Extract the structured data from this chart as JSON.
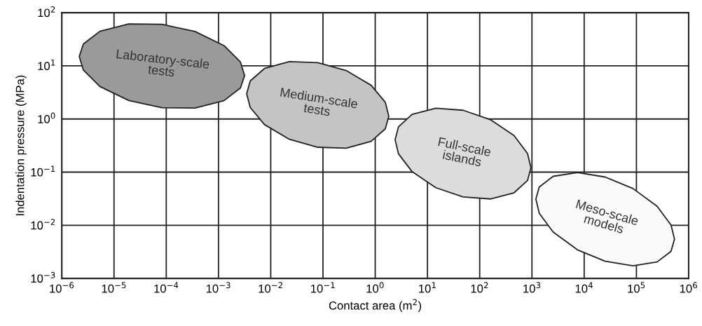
{
  "chart_data": {
    "type": "area",
    "xlabel": "Contact area (m$^{2}$)",
    "ylabel": "Indentation pressure (MPa)",
    "log": "xy",
    "grid": true,
    "xlim": [
      1e-06,
      1000000.0
    ],
    "ylim": [
      0.001,
      100.0
    ],
    "xticks": [
      {
        "value": 1e-06,
        "label": "10$^{−6}$"
      },
      {
        "value": 1e-05,
        "label": "10$^{−5}$"
      },
      {
        "value": 0.0001,
        "label": "10$^{−4}$"
      },
      {
        "value": 0.001,
        "label": "10$^{−3}$"
      },
      {
        "value": 0.01,
        "label": "10$^{−2}$"
      },
      {
        "value": 0.1,
        "label": "10$^{−1}$"
      },
      {
        "value": 1,
        "label": "10$^{0}$"
      },
      {
        "value": 10,
        "label": "10$^{1}$"
      },
      {
        "value": 100,
        "label": "10$^{2}$"
      },
      {
        "value": 1000,
        "label": "10$^{3}$"
      },
      {
        "value": 10000,
        "label": "10$^{4}$"
      },
      {
        "value": 100000,
        "label": "10$^{5}$"
      },
      {
        "value": 1000000,
        "label": "10$^{6}$"
      }
    ],
    "yticks": [
      {
        "value": 0.001,
        "label": "10$^{−3}$"
      },
      {
        "value": 0.01,
        "label": "10$^{−2}$"
      },
      {
        "value": 0.1,
        "label": "10$^{−1}$"
      },
      {
        "value": 1,
        "label": "10$^{0}$"
      },
      {
        "value": 10,
        "label": "10$^{1}$"
      },
      {
        "value": 100,
        "label": "10$^{2}$"
      }
    ],
    "series": [
      {
        "name": "Laboratory-scale\ntests",
        "color": "#9a9a9a",
        "x": [
          2.16e-06,
          2.59e-06,
          5.37e-06,
          1.92e-05,
          8.26e-05,
          0.000355,
          0.00127,
          0.00263,
          0.00316,
          0.00263,
          0.00127,
          0.000355,
          8.26e-05,
          1.92e-05,
          5.37e-06,
          2.59e-06
        ],
        "values": [
          15.0,
          25.8,
          44.7,
          61.4,
          60.5,
          44.3,
          24.1,
          11.8,
          6.59,
          3.83,
          2.21,
          1.61,
          1.63,
          2.23,
          4.09,
          8.34
        ]
      },
      {
        "name": "Medium-scale\ntests",
        "color": "#c4c4c4",
        "x": [
          0.00346,
          0.00405,
          0.00757,
          0.0227,
          0.0794,
          0.278,
          0.834,
          1.56,
          1.82,
          1.56,
          0.834,
          0.278,
          0.0794,
          0.0227,
          0.00757,
          0.00405
        ],
        "values": [
          2.99,
          5.19,
          8.91,
          12.0,
          11.5,
          8.17,
          4.31,
          2.06,
          1.13,
          0.653,
          0.38,
          0.282,
          0.294,
          0.415,
          0.787,
          1.65
        ]
      },
      {
        "name": "Full-scale\nislands",
        "color": "#dcdcdc",
        "x": [
          2.4,
          2.79,
          5.08,
          14.5,
          48.0,
          159,
          453,
          824,
          957,
          824,
          453,
          159,
          48.0,
          14.5,
          5.08,
          2.79
        ],
        "values": [
          0.409,
          0.713,
          1.22,
          1.59,
          1.46,
          0.975,
          0.489,
          0.224,
          0.121,
          0.0697,
          0.0408,
          0.0313,
          0.0341,
          0.0509,
          0.102,
          0.221
        ]
      },
      {
        "name": "Meso-scale\nmodels",
        "color": "#fafafa",
        "x": [
          1190,
          1380,
          2550,
          7430,
          25200,
          85700,
          249000,
          460000,
          536000,
          460000,
          249000,
          85700,
          25200,
          7430,
          2550,
          1380
        ],
        "values": [
          0.031,
          0.0524,
          0.0834,
          0.0982,
          0.0809,
          0.0492,
          0.0228,
          0.0101,
          0.00548,
          0.00324,
          0.00204,
          0.00173,
          0.0021,
          0.00345,
          0.00746,
          0.0168
        ]
      }
    ]
  }
}
